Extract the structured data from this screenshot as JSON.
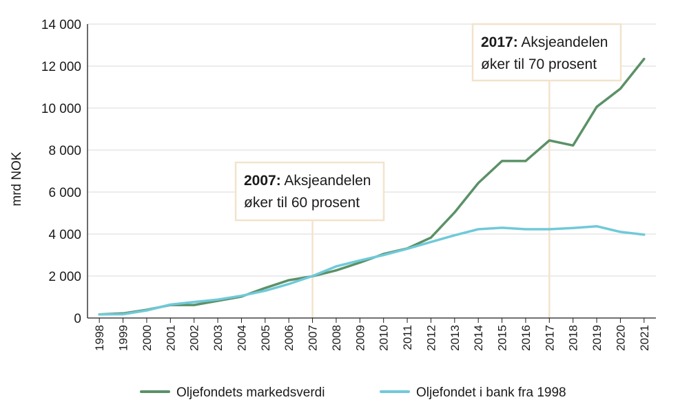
{
  "chart_data": {
    "type": "line",
    "title": "",
    "xlabel": "",
    "ylabel": "mrd NOK",
    "ylim": [
      0,
      14000
    ],
    "yticks": [
      0,
      2000,
      4000,
      6000,
      8000,
      10000,
      12000,
      14000
    ],
    "ytick_labels": [
      "0",
      "2 000",
      "4 000",
      "6 000",
      "8 000",
      "10 000",
      "12 000",
      "14 000"
    ],
    "grid": "horizontal",
    "categories": [
      "1998",
      "1999",
      "2000",
      "2001",
      "2002",
      "2003",
      "2004",
      "2005",
      "2006",
      "2007",
      "2008",
      "2009",
      "2010",
      "2011",
      "2012",
      "2013",
      "2014",
      "2015",
      "2016",
      "2017",
      "2018",
      "2019",
      "2020",
      "2021"
    ],
    "series": [
      {
        "name": "Oljefondets markedsverdi",
        "color": "#5b9167",
        "values": [
          170,
          220,
          390,
          620,
          620,
          820,
          1020,
          1430,
          1800,
          1990,
          2270,
          2640,
          3050,
          3310,
          3830,
          5030,
          6430,
          7480,
          7480,
          8460,
          8220,
          10060,
          10920,
          12340
        ]
      },
      {
        "name": "Oljefondet i bank fra 1998",
        "color": "#70c9d9",
        "values": [
          170,
          180,
          360,
          640,
          760,
          880,
          1060,
          1300,
          1620,
          2000,
          2460,
          2740,
          3000,
          3300,
          3620,
          3940,
          4230,
          4300,
          4230,
          4230,
          4290,
          4370,
          4100,
          3970
        ]
      }
    ],
    "annotations": [
      {
        "year": "2007",
        "bold": "2007:",
        "line1": " Aksjeandelen",
        "line2": "øker til 60 prosent"
      },
      {
        "year": "2017",
        "bold": "2017:",
        "line1": " Aksjeandelen",
        "line2": "øker til 70 prosent"
      }
    ],
    "legend_position": "bottom"
  }
}
